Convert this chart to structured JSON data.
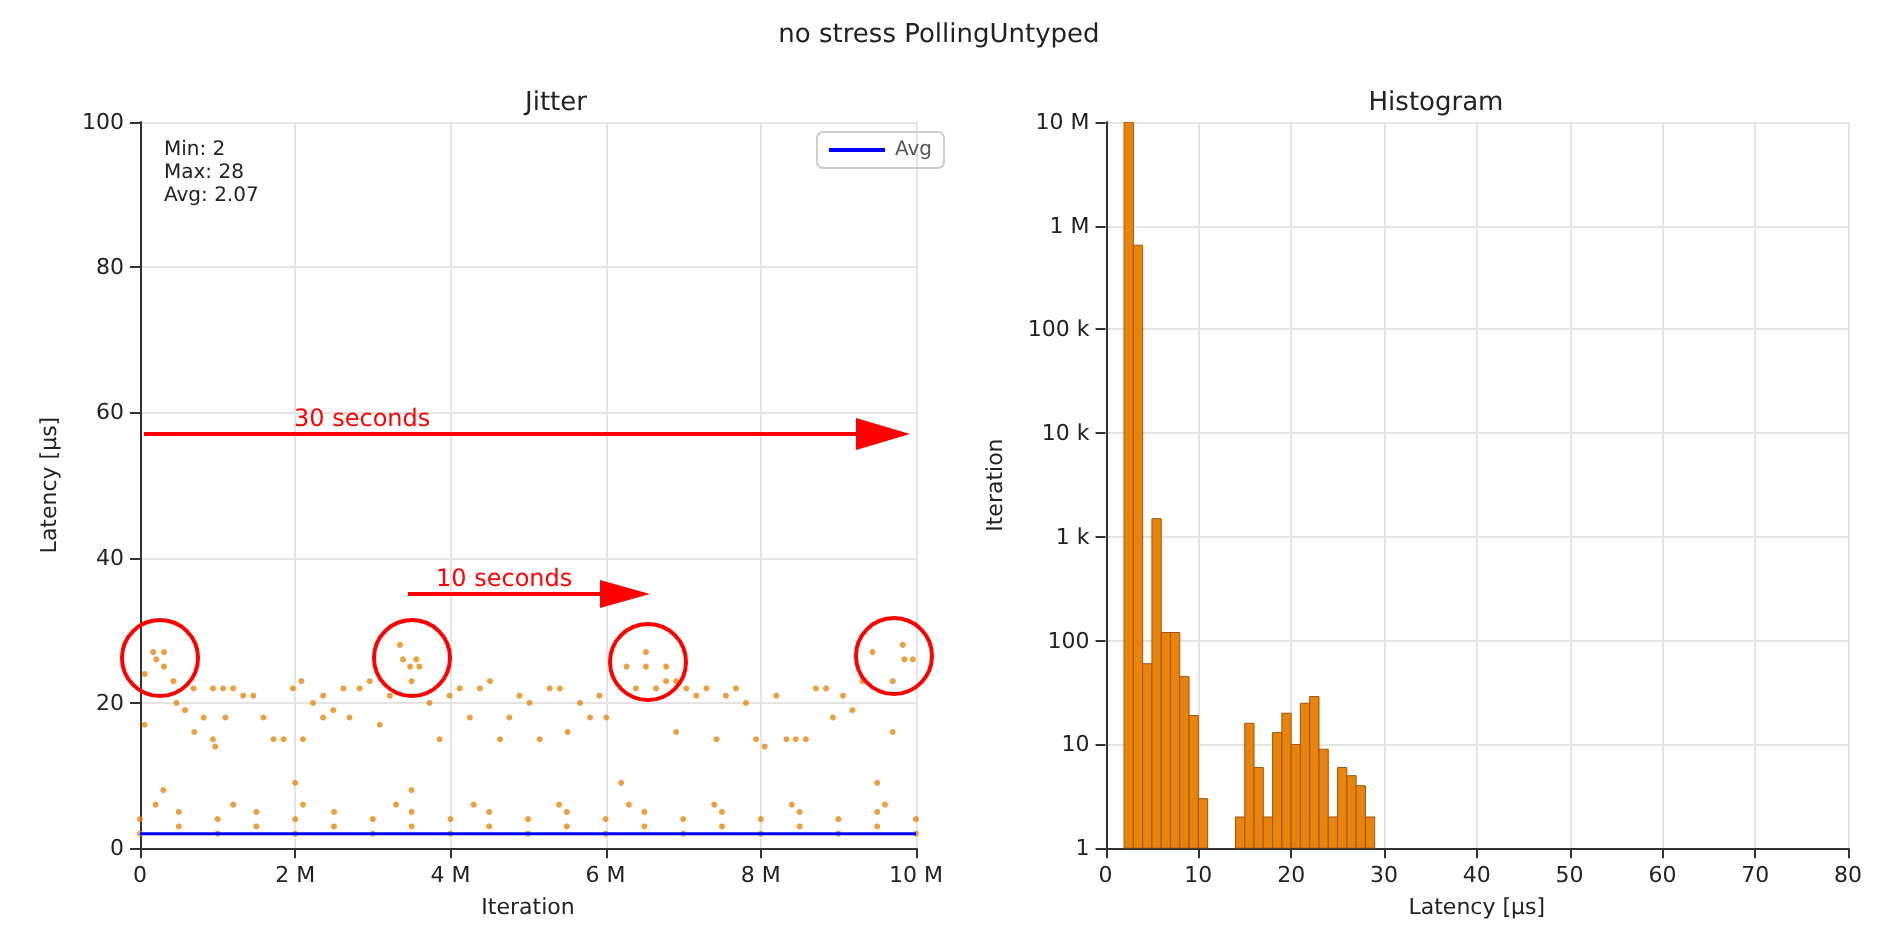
{
  "chart_data": [
    {
      "type": "scatter",
      "title": "Jitter",
      "xlabel": "Iteration",
      "ylabel": "Latency [µs]",
      "xlim": [
        0,
        10000000
      ],
      "xticks": [
        0,
        {
          "value": 2000000,
          "label": "2 M"
        },
        {
          "value": 4000000,
          "label": "4 M"
        },
        {
          "value": 6000000,
          "label": "6 M"
        },
        {
          "value": 8000000,
          "label": "8 M"
        },
        {
          "value": 10000000,
          "label": "10 M"
        }
      ],
      "ylim": [
        0,
        100
      ],
      "yticks": [
        0,
        20,
        40,
        60,
        80,
        100
      ],
      "grid": true,
      "legend": "top right",
      "marker": "circle",
      "annotations": [
        "no stress PollingUntyped",
        "Min: 2\nMax: 28\nAvg: 2.07",
        "30 seconds",
        "10 seconds"
      ],
      "series": [
        {
          "type": "scatter",
          "color": "#e8870e",
          "x": [
            60000,
            60000,
            170000,
            310000,
            210000,
            310000,
            430000,
            470000,
            580000,
            690000,
            700000,
            820000,
            940000,
            940000,
            970000,
            1070000,
            1100000,
            1200000,
            1330000,
            1460000,
            1590000,
            1720000,
            1850000,
            1970000,
            2080000,
            2100000,
            2230000,
            2360000,
            2360000,
            2490000,
            2620000,
            2700000,
            2830000,
            2960000,
            3090000,
            3220000,
            3350000,
            3390000,
            3480000,
            3560000,
            3600000,
            3500000,
            3730000,
            3860000,
            3990000,
            4120000,
            4250000,
            4380000,
            4510000,
            4640000,
            4760000,
            4890000,
            5020000,
            5150000,
            5280000,
            5410000,
            5510000,
            5670000,
            5800000,
            5920000,
            6010000,
            6270000,
            6390000,
            6520000,
            6520000,
            6650000,
            6780000,
            6780000,
            6910000,
            6910000,
            7040000,
            7170000,
            7300000,
            7430000,
            7550000,
            7680000,
            7810000,
            7940000,
            8050000,
            8200000,
            8330000,
            8450000,
            8580000,
            8710000,
            8840000,
            8930000,
            9060000,
            9180000,
            9310000,
            9440000,
            9700000,
            9700000,
            9830000,
            9850000,
            9960000,
            0,
            1000000,
            2000000,
            3000000,
            4000000,
            5000000,
            6000000,
            7000000,
            8000000,
            9000000,
            10000000,
            500000,
            1500000,
            2500000,
            3500000,
            4500000,
            5500000,
            6500000,
            7500000,
            8500000,
            9500000,
            0,
            1000000,
            2000000,
            3000000,
            4000000,
            5000000,
            6000000,
            7000000,
            8000000,
            9000000,
            10000000,
            500000,
            1500000,
            2500000,
            3500000,
            4500000,
            5500000,
            6500000,
            7500000,
            8500000,
            9500000,
            200000,
            1200000,
            2100000,
            3300000,
            4300000,
            5400000,
            6300000,
            7400000,
            8400000,
            9600000,
            300000,
            2000000,
            3500000,
            6200000,
            9500000
          ],
          "values": [
            24,
            17,
            27,
            27,
            26,
            25,
            23,
            20,
            19,
            22,
            16,
            18,
            22,
            15,
            14,
            22,
            18,
            22,
            21,
            21,
            18,
            15,
            15,
            22,
            23,
            15,
            20,
            21,
            18,
            19,
            22,
            18,
            22,
            23,
            17,
            21,
            28,
            26,
            25,
            26,
            25,
            23,
            20,
            15,
            21,
            22,
            18,
            22,
            23,
            15,
            18,
            21,
            20,
            15,
            22,
            22,
            16,
            20,
            18,
            21,
            18,
            25,
            22,
            27,
            25,
            22,
            25,
            23,
            23,
            16,
            22,
            21,
            22,
            15,
            21,
            22,
            20,
            15,
            14,
            21,
            15,
            15,
            15,
            22,
            22,
            18,
            21,
            19,
            23,
            27,
            16,
            23,
            28,
            26,
            26,
            2,
            2,
            2,
            2,
            2,
            2,
            2,
            2,
            2,
            2,
            2,
            3,
            3,
            3,
            3,
            3,
            3,
            3,
            3,
            3,
            3,
            4,
            4,
            4,
            4,
            4,
            4,
            4,
            4,
            4,
            4,
            4,
            5,
            5,
            5,
            5,
            5,
            5,
            5,
            5,
            5,
            5,
            6,
            6,
            6,
            6,
            6,
            6,
            6,
            6,
            6,
            6,
            8,
            9,
            8,
            9,
            9
          ]
        },
        {
          "type": "line",
          "name": "Avg",
          "color": "#0000ff",
          "marker": "none",
          "x": [
            0,
            10000000
          ],
          "values": [
            2,
            2
          ]
        }
      ]
    },
    {
      "type": "histogram",
      "title": "Histogram",
      "xlabel": "Latency [µs]",
      "ylabel": "Iteration",
      "color": "#e8830c",
      "log": "y",
      "grid": true,
      "bins": [
        2,
        3,
        4,
        5,
        6,
        7,
        8,
        9,
        10,
        11,
        12,
        13,
        14,
        15,
        16,
        17,
        18,
        19,
        20,
        21,
        22,
        23,
        24,
        25,
        26,
        27,
        28,
        29
      ],
      "values": [
        10000000,
        650000,
        60,
        1500,
        120,
        120,
        45,
        19,
        3,
        null,
        null,
        null,
        2,
        16,
        6,
        2,
        13,
        20,
        10,
        25,
        29,
        9,
        2,
        6,
        5,
        4,
        2
      ],
      "xlim": [
        0,
        80
      ],
      "xticks": [
        0,
        10,
        20,
        30,
        40,
        50,
        60,
        70,
        80
      ],
      "ylim": [
        1,
        10000000
      ],
      "yticks": [
        1,
        10,
        100,
        {
          "value": 1000,
          "label": "1 k"
        },
        {
          "value": 10000,
          "label": "10 k"
        },
        {
          "value": 100000,
          "label": "100 k"
        },
        {
          "value": 1000000,
          "label": "1 M"
        },
        {
          "value": 10000000,
          "label": "10 M"
        }
      ]
    }
  ]
}
